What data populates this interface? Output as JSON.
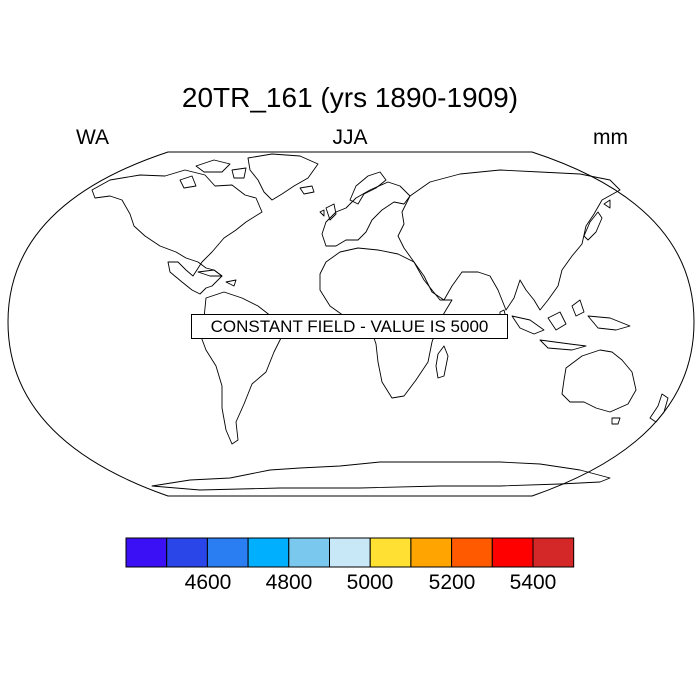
{
  "title": "20TR_161 (yrs 1890-1909)",
  "left_label": "WA",
  "center_label": "JJA",
  "right_label": "mm",
  "message": "CONSTANT FIELD - VALUE IS 5000",
  "colorbar": {
    "colors": [
      "#3b10f5",
      "#2a45e8",
      "#2a7ef2",
      "#00b0ff",
      "#7ac8ee",
      "#c8e8f8",
      "#ffe033",
      "#ffa400",
      "#ff5a00",
      "#ff0000",
      "#d42828"
    ],
    "tick_labels": [
      "4600",
      "4800",
      "5000",
      "5200",
      "5400"
    ]
  }
}
